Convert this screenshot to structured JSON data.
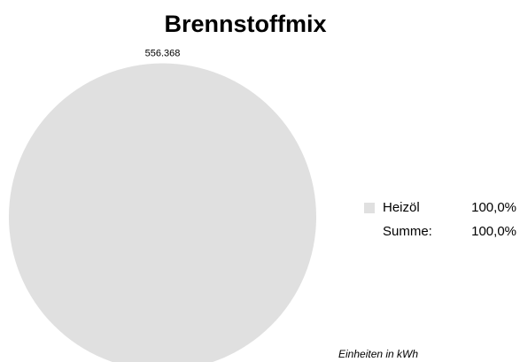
{
  "chart_data": {
    "type": "pie",
    "title": "Brennstoffmix",
    "categories": [
      "Heizöl"
    ],
    "values": [
      556368
    ],
    "value_labels": [
      "556.368"
    ],
    "colors": [
      "#e0e0e0"
    ],
    "percent_labels": [
      "100,0%"
    ],
    "total_label": "Summe:",
    "total_percent_label": "100,0%",
    "legend": "right",
    "annotation": "Einheiten in kWh"
  }
}
